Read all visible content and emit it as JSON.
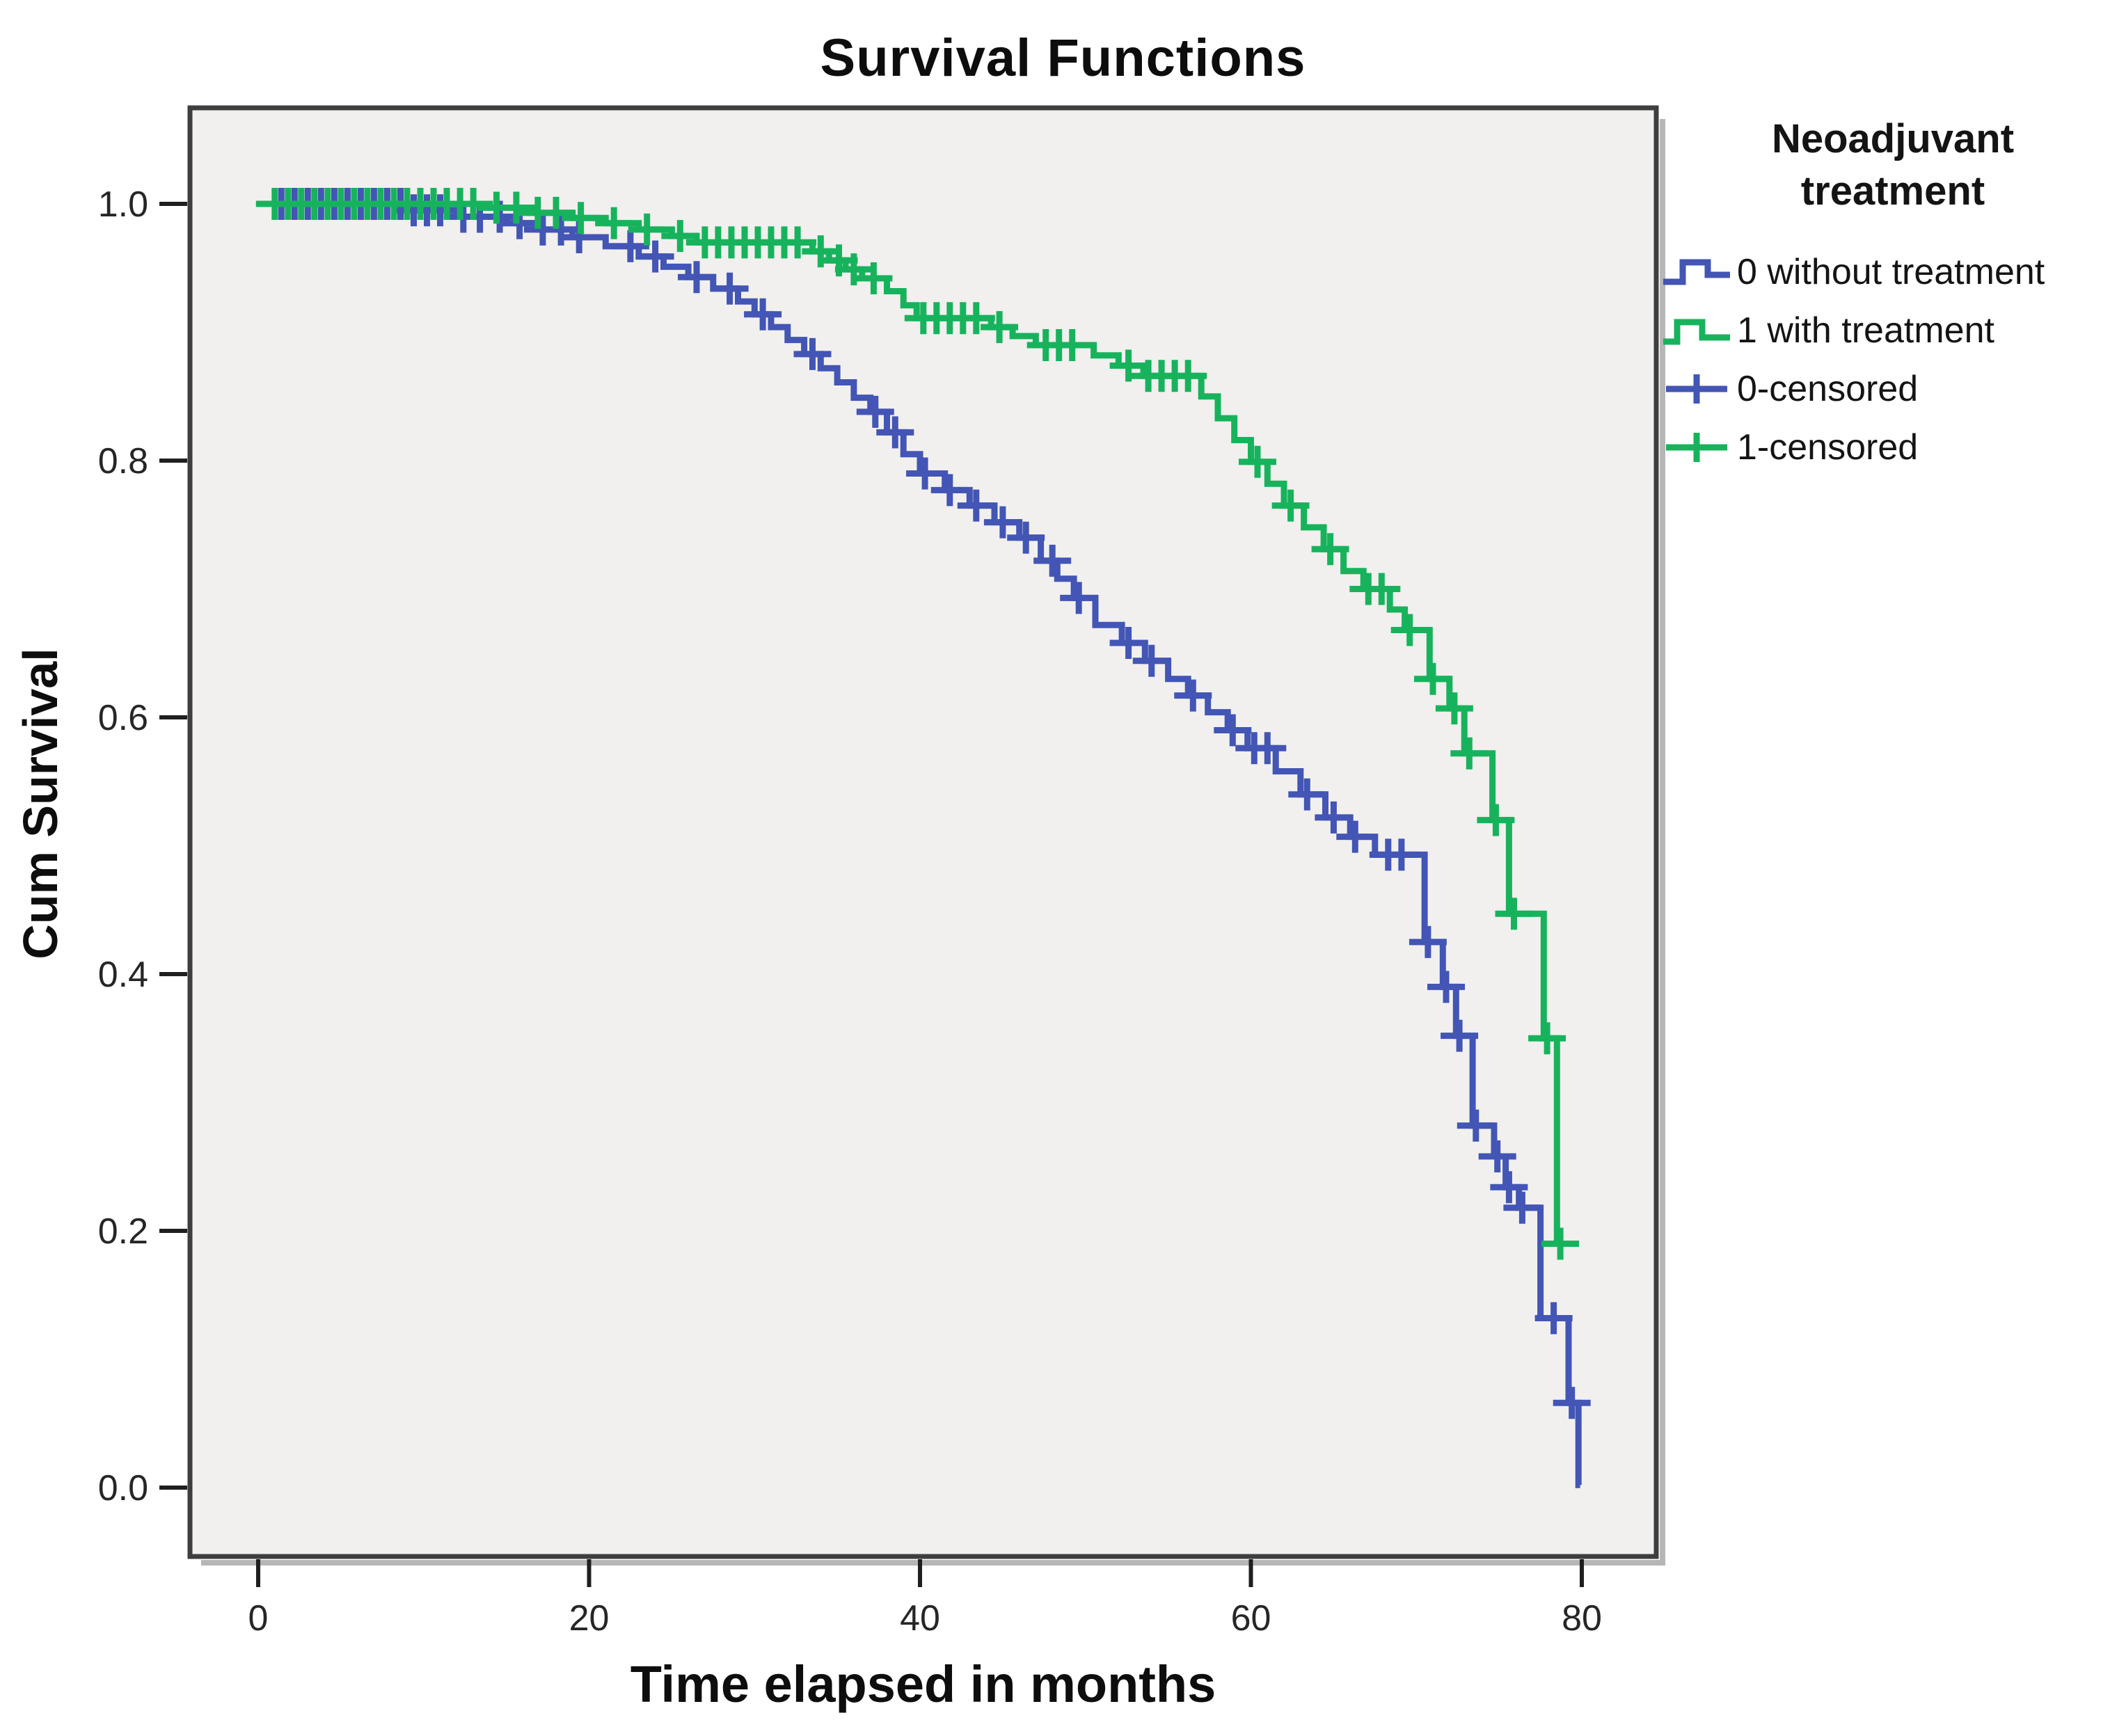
{
  "title": "Survival Functions",
  "axes": {
    "x_label": "Time elapsed in months",
    "y_label": "Cum Survival"
  },
  "legend": {
    "title_line1": "Neoadjuvant",
    "title_line2": "treatment",
    "items": [
      {
        "label": "0 without treatment",
        "symbol": "step-line",
        "series_index": 0
      },
      {
        "label": "1 with treatment",
        "symbol": "step-line",
        "series_index": 1
      },
      {
        "label": "0-censored",
        "symbol": "plus-mark",
        "series_index": 0
      },
      {
        "label": "1-censored",
        "symbol": "plus-mark",
        "series_index": 1
      }
    ]
  },
  "colors": {
    "without_treatment": "#4355b5",
    "with_treatment": "#17b35c",
    "plot_background": "#f1f0ee",
    "frame": "#3e3e3e",
    "tick_text": "#262626",
    "shadow": "#b6b6b6"
  },
  "chart_data": {
    "type": "line",
    "variant": "kaplan-meier-step",
    "title": "Survival Functions",
    "xlabel": "Time elapsed in months",
    "ylabel": "Cum Survival",
    "xlim": [
      0,
      80
    ],
    "ylim": [
      0.0,
      1.0
    ],
    "x_ticks": [
      0,
      20,
      40,
      60,
      80
    ],
    "y_ticks": [
      0.0,
      0.2,
      0.4,
      0.6,
      0.8,
      1.0
    ],
    "grid": false,
    "legend_position": "right",
    "plot_background": "#f1f0ee",
    "frame_color": "#3e3e3e",
    "series": [
      {
        "name": "0 without treatment",
        "group": "0",
        "color": "#4355b5",
        "end_t": 79.9,
        "steps": [
          [
            0,
            1.0
          ],
          [
            9,
            0.995
          ],
          [
            12,
            0.99
          ],
          [
            15,
            0.985
          ],
          [
            17,
            0.98
          ],
          [
            19,
            0.974
          ],
          [
            21,
            0.967
          ],
          [
            23,
            0.959
          ],
          [
            24.5,
            0.951
          ],
          [
            26,
            0.943
          ],
          [
            27.5,
            0.934
          ],
          [
            29,
            0.924
          ],
          [
            30,
            0.914
          ],
          [
            31,
            0.904
          ],
          [
            32,
            0.894
          ],
          [
            33,
            0.883
          ],
          [
            34,
            0.872
          ],
          [
            35,
            0.861
          ],
          [
            36,
            0.849
          ],
          [
            37,
            0.838
          ],
          [
            38,
            0.822
          ],
          [
            39,
            0.805
          ],
          [
            40,
            0.79
          ],
          [
            41.5,
            0.777
          ],
          [
            43,
            0.765
          ],
          [
            44.5,
            0.752
          ],
          [
            46,
            0.74
          ],
          [
            47.3,
            0.722
          ],
          [
            48.3,
            0.708
          ],
          [
            49.3,
            0.693
          ],
          [
            50.6,
            0.672
          ],
          [
            52.2,
            0.658
          ],
          [
            53.6,
            0.644
          ],
          [
            55,
            0.63
          ],
          [
            56.2,
            0.617
          ],
          [
            57.4,
            0.604
          ],
          [
            58.6,
            0.59
          ],
          [
            59.8,
            0.576
          ],
          [
            61.5,
            0.558
          ],
          [
            63,
            0.54
          ],
          [
            64.5,
            0.522
          ],
          [
            66,
            0.507
          ],
          [
            67.5,
            0.493
          ],
          [
            70.5,
            0.425
          ],
          [
            71.6,
            0.39
          ],
          [
            72.4,
            0.352
          ],
          [
            73.4,
            0.282
          ],
          [
            74.7,
            0.258
          ],
          [
            75.4,
            0.234
          ],
          [
            76.2,
            0.218
          ],
          [
            77.5,
            0.132
          ],
          [
            79.2,
            0.066
          ],
          [
            79.8,
            0.002
          ]
        ],
        "censor_times": [
          1.4,
          2.2,
          3,
          3.8,
          4.6,
          5.4,
          6.2,
          7,
          7.8,
          8.6,
          9.4,
          10.2,
          11,
          12.4,
          13.4,
          14.6,
          15.8,
          17.2,
          18.3,
          19.4,
          22.5,
          24,
          26.5,
          28.5,
          30.5,
          33.5,
          37.3,
          38.5,
          40.3,
          41.8,
          43.4,
          45,
          46.4,
          48,
          49.6,
          52.6,
          54,
          56.5,
          58.9,
          60.2,
          61,
          63.4,
          65,
          66.3,
          68.3,
          69.1,
          70.7,
          71.8,
          72.6,
          73.6,
          74.9,
          75.6,
          76.4,
          78.3,
          79.4
        ]
      },
      {
        "name": "1 with treatment",
        "group": "1",
        "color": "#17b35c",
        "end_t": 79.0,
        "steps": [
          [
            0,
            1.0
          ],
          [
            14,
            0.997
          ],
          [
            16.5,
            0.993
          ],
          [
            19,
            0.989
          ],
          [
            21,
            0.985
          ],
          [
            23,
            0.98
          ],
          [
            25,
            0.975
          ],
          [
            26.5,
            0.97
          ],
          [
            33.5,
            0.963
          ],
          [
            34.5,
            0.956
          ],
          [
            35.5,
            0.949
          ],
          [
            36.5,
            0.942
          ],
          [
            38,
            0.932
          ],
          [
            39,
            0.921
          ],
          [
            39.8,
            0.911
          ],
          [
            44.3,
            0.904
          ],
          [
            45.6,
            0.897
          ],
          [
            47,
            0.89
          ],
          [
            50.5,
            0.882
          ],
          [
            52,
            0.874
          ],
          [
            53.5,
            0.866
          ],
          [
            57,
            0.85
          ],
          [
            58,
            0.833
          ],
          [
            59,
            0.816
          ],
          [
            60,
            0.799
          ],
          [
            61,
            0.782
          ],
          [
            62,
            0.765
          ],
          [
            63.2,
            0.748
          ],
          [
            64.4,
            0.731
          ],
          [
            65.6,
            0.714
          ],
          [
            66.8,
            0.7
          ],
          [
            68.4,
            0.684
          ],
          [
            69.3,
            0.668
          ],
          [
            70.8,
            0.63
          ],
          [
            72,
            0.607
          ],
          [
            72.9,
            0.572
          ],
          [
            74.6,
            0.52
          ],
          [
            75.6,
            0.447
          ],
          [
            77.7,
            0.35
          ],
          [
            78.5,
            0.19
          ]
        ],
        "censor_times": [
          1,
          1.8,
          2.6,
          3.4,
          4.2,
          5,
          5.8,
          6.6,
          7.4,
          8.2,
          9,
          9.8,
          10.6,
          11.4,
          12.2,
          13,
          14.4,
          15.6,
          16.9,
          18,
          19.5,
          21.5,
          23.5,
          25.5,
          27,
          27.8,
          28.6,
          29.4,
          30.2,
          31,
          31.8,
          32.6,
          34,
          35.1,
          36,
          37.2,
          40.2,
          41,
          41.8,
          42.6,
          43.4,
          44.8,
          47.6,
          48.4,
          49.2,
          52.6,
          53.8,
          54.6,
          55.4,
          56.2,
          60.4,
          62.4,
          64.8,
          67.1,
          67.9,
          69.6,
          71,
          72.3,
          73.2,
          74.8,
          75.9,
          77.9,
          78.7
        ]
      }
    ]
  }
}
